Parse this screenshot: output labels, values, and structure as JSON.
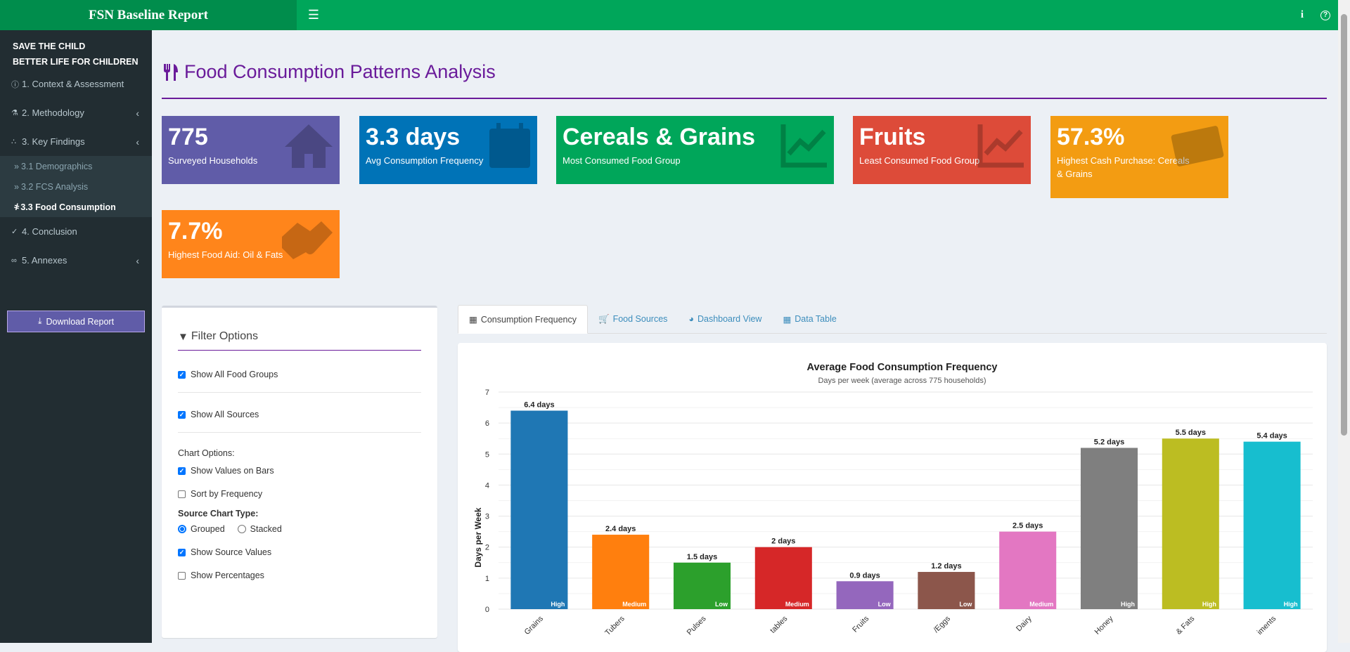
{
  "header": {
    "title": "FSN Baseline Report",
    "menu_icon": "hamburger-icon",
    "info_label": "i",
    "help_label": "?"
  },
  "sidebar": {
    "org_line1": "SAVE THE CHILD",
    "org_line2": "BETTER LIFE FOR CHILDREN",
    "items": [
      {
        "label": "1. Context & Assessment",
        "icon": "info-circle-icon"
      },
      {
        "label": "2. Methodology",
        "icon": "flask-icon"
      },
      {
        "label": "3. Key Findings",
        "icon": "chart-line-icon"
      },
      {
        "label": "4. Conclusion",
        "icon": "check-circle-icon"
      },
      {
        "label": "5. Annexes",
        "icon": "paperclip-icon"
      }
    ],
    "subitems": [
      {
        "label": "3.1 Demographics"
      },
      {
        "label": "3.2 FCS Analysis"
      },
      {
        "label": "3.3 Food Consumption"
      }
    ],
    "download_label": "Download Report"
  },
  "page": {
    "title": "Food Consumption Patterns Analysis"
  },
  "value_boxes": [
    {
      "value": "775",
      "label": "Surveyed Households",
      "color": "#605ca8",
      "icon": "home-icon"
    },
    {
      "value": "3.3 days",
      "label": "Avg Consumption Frequency",
      "color": "#0073b7",
      "icon": "calendar-icon"
    },
    {
      "value": "Cereals & Grains",
      "label": "Most Consumed Food Group",
      "color": "#00a65a",
      "icon": "chart-line-icon"
    },
    {
      "value": "Fruits",
      "label": "Least Consumed Food Group",
      "color": "#dd4b39",
      "icon": "chart-line-icon"
    },
    {
      "value": "57.3%",
      "label": "Highest Cash Purchase: Cereals & Grains",
      "color": "#f39c12",
      "icon": "money-icon"
    },
    {
      "value": "7.7%",
      "label": "Highest Food Aid: Oil & Fats",
      "color": "#ff851b",
      "icon": "handshake-icon"
    }
  ],
  "filters": {
    "title": "Filter Options",
    "show_all_groups": "Show All Food Groups",
    "show_all_sources": "Show All Sources",
    "chart_options": "Chart Options:",
    "show_values": "Show Values on Bars",
    "sort_freq": "Sort by Frequency",
    "source_type": "Source Chart Type:",
    "grouped": "Grouped",
    "stacked": "Stacked",
    "show_source_values": "Show Source Values",
    "show_percentages": "Show Percentages"
  },
  "tabs": [
    {
      "label": "Consumption Frequency",
      "icon": "table-icon"
    },
    {
      "label": "Food Sources",
      "icon": "cart-icon"
    },
    {
      "label": "Dashboard View",
      "icon": "dashboard-icon"
    },
    {
      "label": "Data Table",
      "icon": "table-icon"
    }
  ],
  "chart_data": {
    "type": "bar",
    "title": "Average Food Consumption Frequency",
    "subtitle": "Days per week (average across 775 households)",
    "ylabel": "Days per Week",
    "ylim": [
      0,
      7
    ],
    "yticks": [
      0,
      1,
      2,
      3,
      4,
      5,
      6,
      7
    ],
    "grid": true,
    "categories": [
      "Grains",
      "Tubers",
      "Pulses",
      "tables",
      "Fruits",
      "/Eggs",
      "Dairy",
      "Honey",
      "& Fats",
      "iments"
    ],
    "values": [
      6.4,
      2.4,
      1.5,
      2.0,
      0.9,
      1.2,
      2.5,
      5.2,
      5.5,
      5.4
    ],
    "value_labels": [
      "6.4 days",
      "2.4 days",
      "1.5 days",
      "2 days",
      "0.9 days",
      "1.2 days",
      "2.5 days",
      "5.2 days",
      "5.5 days",
      "5.4 days"
    ],
    "levels": [
      "High",
      "Medium",
      "Low",
      "Medium",
      "Low",
      "Low",
      "Medium",
      "High",
      "High",
      "High"
    ],
    "colors": [
      "#1f77b4",
      "#ff7f0e",
      "#2ca02c",
      "#d62728",
      "#9467bd",
      "#8c564b",
      "#e377c2",
      "#7f7f7f",
      "#bcbd22",
      "#17becf"
    ]
  }
}
